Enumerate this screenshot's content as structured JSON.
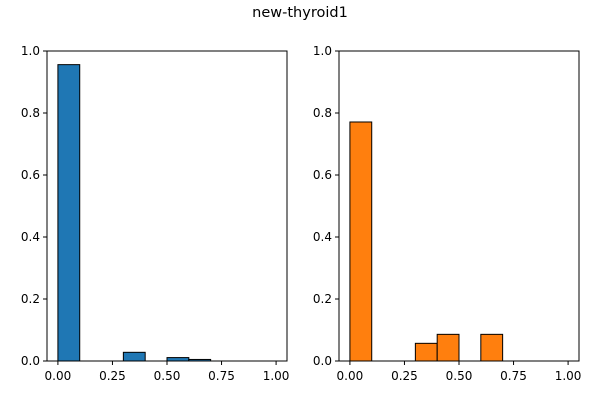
{
  "figure": {
    "title": "new-thyroid1"
  },
  "chart_data": [
    {
      "type": "bar",
      "title": "",
      "xlabel": "",
      "ylabel": "",
      "xlim": [
        -0.05,
        1.05
      ],
      "ylim": [
        0,
        1.0
      ],
      "xticks": [
        "0.00",
        "0.25",
        "0.50",
        "0.75",
        "1.00"
      ],
      "yticks": [
        "0.0",
        "0.2",
        "0.4",
        "0.6",
        "0.8",
        "1.0"
      ],
      "bin_edges": [
        0.0,
        0.1,
        0.2,
        0.3,
        0.4,
        0.5,
        0.6,
        0.7,
        0.8,
        0.9,
        1.0
      ],
      "values": [
        0.956,
        0.0,
        0.0,
        0.028,
        0.0,
        0.011,
        0.005,
        0.0,
        0.0,
        0.0
      ],
      "color": "#1f77b4",
      "edgecolor": "#000000",
      "grid": false
    },
    {
      "type": "bar",
      "title": "",
      "xlabel": "",
      "ylabel": "",
      "xlim": [
        -0.05,
        1.05
      ],
      "ylim": [
        0,
        1.0
      ],
      "xticks": [
        "0.00",
        "0.25",
        "0.50",
        "0.75",
        "1.00"
      ],
      "yticks": [
        "0.0",
        "0.2",
        "0.4",
        "0.6",
        "0.8",
        "1.0"
      ],
      "bin_edges": [
        0.0,
        0.1,
        0.2,
        0.3,
        0.4,
        0.5,
        0.6,
        0.7,
        0.8,
        0.9,
        1.0
      ],
      "values": [
        0.771,
        0.0,
        0.0,
        0.057,
        0.086,
        0.0,
        0.086,
        0.0,
        0.0,
        0.0
      ],
      "color": "#ff7f0e",
      "edgecolor": "#000000",
      "grid": false
    }
  ]
}
